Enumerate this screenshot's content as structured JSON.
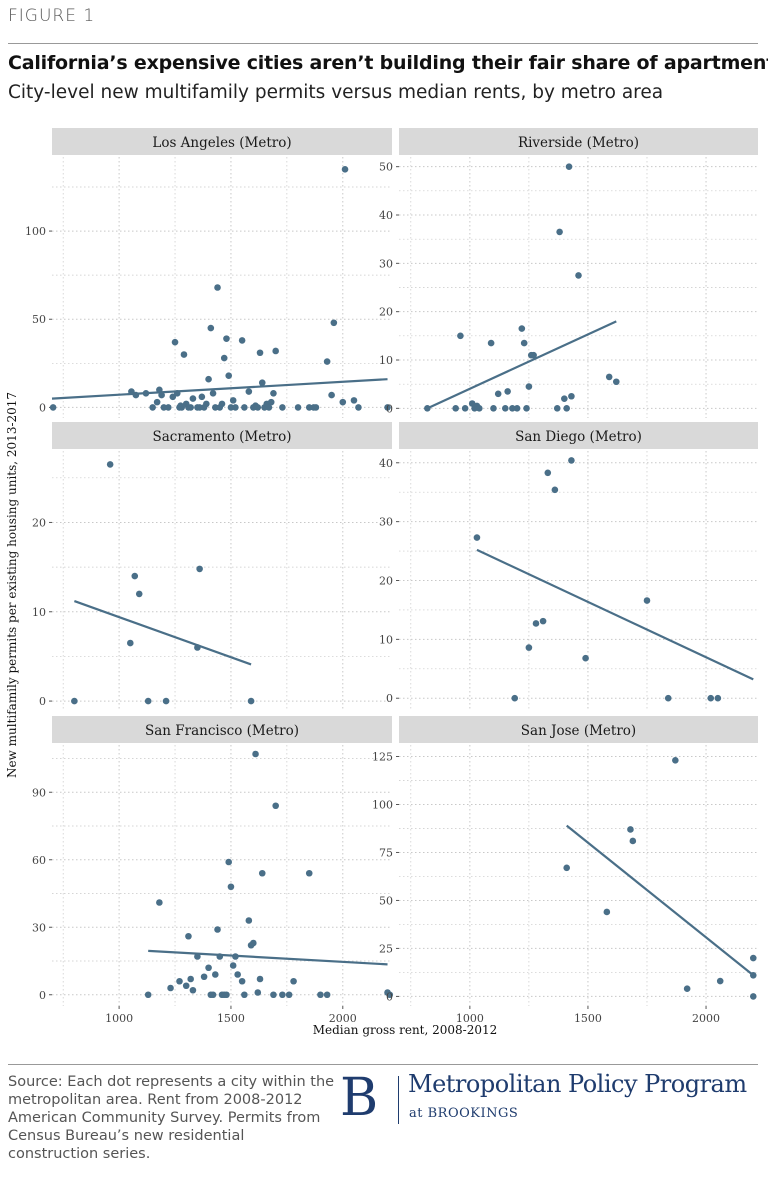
{
  "header": {
    "figure_label": "FIGURE 1",
    "title": "California’s expensive cities aren’t building their fair share of apartments",
    "subtitle": "City-level new multifamily permits versus median rents, by metro area"
  },
  "footer": {
    "source": "Source: Each dot represents a city within the metropolitan area. Rent from 2008-2012 American Community Survey. Permits from Census Bureau’s new residential construction series.",
    "brand_letter": "B",
    "brand_name": "Metropolitan Policy Program",
    "brand_sub": "at BROOKINGS"
  },
  "colors": {
    "point": "#4a6f88",
    "line": "#4a6f88",
    "strip": "#d9d9d9",
    "grid": "#c8c8c8"
  },
  "chart_data": {
    "type": "scatter",
    "xlabel": "Median gross rent, 2008-2012",
    "ylabel": "New multifamily permits per existing housing units, 2013-2017",
    "xlim": [
      700,
      2220
    ],
    "x_ticks": [
      1000,
      1500,
      2000
    ],
    "panels": [
      {
        "title": "Los Angeles (Metro)",
        "ylim": [
          -6,
          142
        ],
        "y_ticks": [
          0,
          50,
          100
        ],
        "trend": [
          [
            700,
            5
          ],
          [
            2200,
            16
          ]
        ],
        "points": [
          [
            705,
            0
          ],
          [
            1055,
            9
          ],
          [
            1075,
            7
          ],
          [
            1120,
            8
          ],
          [
            1150,
            0
          ],
          [
            1170,
            3
          ],
          [
            1180,
            10
          ],
          [
            1190,
            7
          ],
          [
            1200,
            0
          ],
          [
            1220,
            0
          ],
          [
            1240,
            6
          ],
          [
            1250,
            37
          ],
          [
            1260,
            8
          ],
          [
            1270,
            0
          ],
          [
            1275,
            1
          ],
          [
            1280,
            0
          ],
          [
            1290,
            30
          ],
          [
            1300,
            2
          ],
          [
            1310,
            0
          ],
          [
            1320,
            0
          ],
          [
            1330,
            5
          ],
          [
            1350,
            0
          ],
          [
            1360,
            0
          ],
          [
            1370,
            6
          ],
          [
            1380,
            0
          ],
          [
            1390,
            2
          ],
          [
            1400,
            16
          ],
          [
            1410,
            45
          ],
          [
            1420,
            8
          ],
          [
            1430,
            0
          ],
          [
            1440,
            68
          ],
          [
            1450,
            0
          ],
          [
            1460,
            2
          ],
          [
            1470,
            28
          ],
          [
            1480,
            39
          ],
          [
            1490,
            18
          ],
          [
            1500,
            0
          ],
          [
            1510,
            4
          ],
          [
            1520,
            0
          ],
          [
            1550,
            38
          ],
          [
            1560,
            0
          ],
          [
            1580,
            9
          ],
          [
            1600,
            0
          ],
          [
            1610,
            1
          ],
          [
            1620,
            0
          ],
          [
            1630,
            31
          ],
          [
            1640,
            14
          ],
          [
            1650,
            0
          ],
          [
            1660,
            2
          ],
          [
            1670,
            0
          ],
          [
            1680,
            3
          ],
          [
            1690,
            8
          ],
          [
            1700,
            32
          ],
          [
            1730,
            0
          ],
          [
            1800,
            0
          ],
          [
            1850,
            0
          ],
          [
            1870,
            0
          ],
          [
            1880,
            0
          ],
          [
            1930,
            26
          ],
          [
            1950,
            7
          ],
          [
            1960,
            48
          ],
          [
            2000,
            3
          ],
          [
            2010,
            135
          ],
          [
            2050,
            4
          ],
          [
            2070,
            0
          ],
          [
            2200,
            0
          ]
        ]
      },
      {
        "title": "Riverside (Metro)",
        "ylim": [
          -2,
          52
        ],
        "y_ticks": [
          0,
          10,
          20,
          30,
          40,
          50
        ],
        "trend": [
          [
            820,
            0
          ],
          [
            1620,
            18
          ]
        ],
        "points": [
          [
            820,
            0
          ],
          [
            940,
            0
          ],
          [
            960,
            15
          ],
          [
            980,
            0
          ],
          [
            1010,
            1
          ],
          [
            1020,
            0
          ],
          [
            1030,
            0.5
          ],
          [
            1040,
            0
          ],
          [
            1090,
            13.5
          ],
          [
            1100,
            0
          ],
          [
            1120,
            3
          ],
          [
            1150,
            0
          ],
          [
            1160,
            3.5
          ],
          [
            1180,
            0
          ],
          [
            1200,
            0
          ],
          [
            1220,
            16.5
          ],
          [
            1230,
            13.5
          ],
          [
            1240,
            0
          ],
          [
            1250,
            4.5
          ],
          [
            1260,
            11
          ],
          [
            1270,
            11
          ],
          [
            1370,
            0
          ],
          [
            1380,
            36.5
          ],
          [
            1400,
            2
          ],
          [
            1410,
            0
          ],
          [
            1420,
            50
          ],
          [
            1430,
            2.5
          ],
          [
            1460,
            27.5
          ],
          [
            1590,
            6.5
          ],
          [
            1620,
            5.5
          ]
        ]
      },
      {
        "title": "Sacramento (Metro)",
        "ylim": [
          -1,
          28
        ],
        "y_ticks": [
          0,
          10,
          20
        ],
        "trend": [
          [
            800,
            11.2
          ],
          [
            1590,
            4.1
          ]
        ],
        "points": [
          [
            800,
            0
          ],
          [
            960,
            26.5
          ],
          [
            1050,
            6.5
          ],
          [
            1070,
            14
          ],
          [
            1090,
            12
          ],
          [
            1130,
            0
          ],
          [
            1210,
            0
          ],
          [
            1350,
            6
          ],
          [
            1360,
            14.8
          ],
          [
            1590,
            0
          ]
        ]
      },
      {
        "title": "San Diego (Metro)",
        "ylim": [
          -2,
          42
        ],
        "y_ticks": [
          0,
          10,
          20,
          30,
          40
        ],
        "trend": [
          [
            1030,
            25.2
          ],
          [
            2200,
            3.2
          ]
        ],
        "points": [
          [
            1030,
            27.3
          ],
          [
            1190,
            0
          ],
          [
            1250,
            8.6
          ],
          [
            1280,
            12.7
          ],
          [
            1310,
            13.1
          ],
          [
            1330,
            38.3
          ],
          [
            1360,
            35.4
          ],
          [
            1430,
            40.4
          ],
          [
            1490,
            6.8
          ],
          [
            1750,
            16.6
          ],
          [
            1840,
            0
          ],
          [
            2020,
            0
          ],
          [
            2050,
            0
          ]
        ]
      },
      {
        "title": "San Francisco (Metro)",
        "ylim": [
          -5,
          111
        ],
        "y_ticks": [
          0,
          30,
          60,
          90
        ],
        "trend": [
          [
            1130,
            19.5
          ],
          [
            2200,
            13.5
          ]
        ],
        "points": [
          [
            1130,
            0
          ],
          [
            1180,
            41
          ],
          [
            1230,
            3
          ],
          [
            1270,
            6
          ],
          [
            1300,
            4
          ],
          [
            1310,
            26
          ],
          [
            1320,
            7
          ],
          [
            1330,
            2
          ],
          [
            1350,
            17
          ],
          [
            1380,
            8
          ],
          [
            1400,
            12
          ],
          [
            1410,
            0
          ],
          [
            1420,
            0
          ],
          [
            1430,
            9
          ],
          [
            1440,
            29
          ],
          [
            1450,
            17
          ],
          [
            1460,
            0
          ],
          [
            1470,
            0
          ],
          [
            1480,
            0
          ],
          [
            1490,
            59
          ],
          [
            1500,
            48
          ],
          [
            1510,
            13
          ],
          [
            1520,
            17
          ],
          [
            1530,
            9
          ],
          [
            1550,
            6
          ],
          [
            1560,
            0
          ],
          [
            1580,
            33
          ],
          [
            1590,
            22
          ],
          [
            1600,
            23
          ],
          [
            1610,
            107
          ],
          [
            1620,
            1
          ],
          [
            1630,
            7
          ],
          [
            1640,
            54
          ],
          [
            1690,
            0
          ],
          [
            1700,
            84
          ],
          [
            1730,
            0
          ],
          [
            1760,
            0
          ],
          [
            1780,
            6
          ],
          [
            1850,
            54
          ],
          [
            1900,
            0
          ],
          [
            1930,
            0
          ],
          [
            2200,
            1
          ],
          [
            2210,
            0
          ]
        ]
      },
      {
        "title": "San Jose (Metro)",
        "ylim": [
          -5,
          131
        ],
        "y_ticks": [
          0,
          25,
          50,
          75,
          100,
          125
        ],
        "trend": [
          [
            1410,
            89
          ],
          [
            2200,
            11
          ]
        ],
        "points": [
          [
            1410,
            67
          ],
          [
            1580,
            44
          ],
          [
            1680,
            87
          ],
          [
            1690,
            81
          ],
          [
            1870,
            123
          ],
          [
            1920,
            4
          ],
          [
            2060,
            8
          ],
          [
            2200,
            20
          ],
          [
            2200,
            11
          ],
          [
            2200,
            0
          ]
        ]
      }
    ]
  }
}
